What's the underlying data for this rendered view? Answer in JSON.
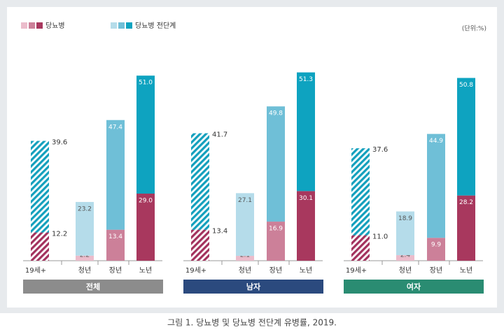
{
  "chart_data": {
    "type": "stacked_bar",
    "unit": "(단위:%)",
    "caption": "그림 1. 당뇨병 및 당뇨병 전단계 유병률, 2019.",
    "categories": [
      "19세+",
      "청년",
      "장년",
      "노년"
    ],
    "groups": [
      {
        "title": "전체",
        "color": "#8c8c8c"
      },
      {
        "title": "남자",
        "color": "#2b4a7e"
      },
      {
        "title": "여자",
        "color": "#2a8c72"
      }
    ],
    "series": [
      {
        "name": "당뇨병",
        "colors": [
          "#a3315d",
          "#ebbccb",
          "#cc8099",
          "#a8385e"
        ],
        "values": [
          [
            12.2,
            2.2,
            13.4,
            29.0
          ],
          [
            13.4,
            2.1,
            16.9,
            30.1
          ],
          [
            11.0,
            2.4,
            9.9,
            28.2
          ]
        ],
        "value_labels": [
          [
            "12.2",
            "2.2",
            "13.4",
            "29.0"
          ],
          [
            "13.4",
            "2.1",
            "16.9",
            "30.1"
          ],
          [
            "11.0",
            "2.4",
            "9.9",
            "28.2"
          ]
        ]
      },
      {
        "name": "당뇨병 전단계",
        "colors": [
          "#13a0bd",
          "#b5dcea",
          "#6fbfd7",
          "#0ea3c0"
        ],
        "values": [
          [
            39.6,
            23.2,
            47.4,
            51.0
          ],
          [
            41.7,
            27.1,
            49.8,
            51.3
          ],
          [
            37.6,
            18.9,
            44.9,
            50.8
          ]
        ],
        "value_labels": [
          [
            "39.6",
            "23.2",
            "47.4",
            "51.0"
          ],
          [
            "41.7",
            "27.1",
            "49.8",
            "51.3"
          ],
          [
            "37.6",
            "18.9",
            "44.9",
            "50.8"
          ]
        ]
      }
    ]
  }
}
